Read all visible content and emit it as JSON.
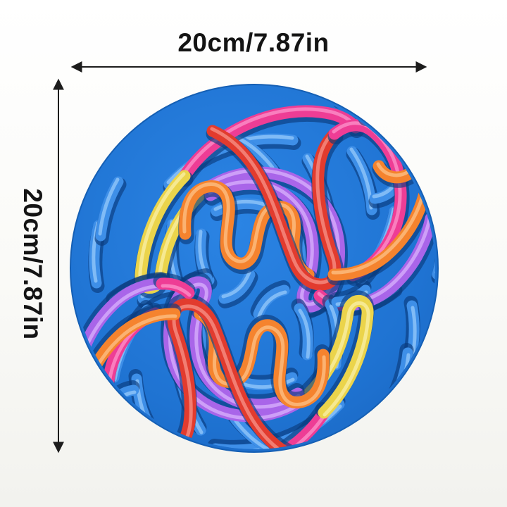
{
  "annotations": {
    "width_label": "20cm/7.87in",
    "height_label": "20cm/7.87in"
  },
  "palette": {
    "background": "#FAFAF8",
    "text": "#141414",
    "arrow": "#1C1C1C",
    "mat_base": "#1F73D2",
    "mat_base_light": "#2B84E4",
    "mat_rim_shade": "#155FB4",
    "tube_shadow": "#0A3C7E",
    "colors": {
      "blue": {
        "main": "#3E8FE8",
        "light": "#8CC3F8"
      },
      "purple": {
        "main": "#A965E9",
        "light": "#D4A9FA"
      },
      "magenta": {
        "main": "#EE3D95",
        "light": "#FA8AC6"
      },
      "red": {
        "main": "#E23B2E",
        "light": "#F4897E"
      },
      "orange": {
        "main": "#F5832E",
        "light": "#FCBB7C"
      },
      "yellow": {
        "main": "#EBD44B",
        "light": "#F8EC9E"
      }
    }
  }
}
